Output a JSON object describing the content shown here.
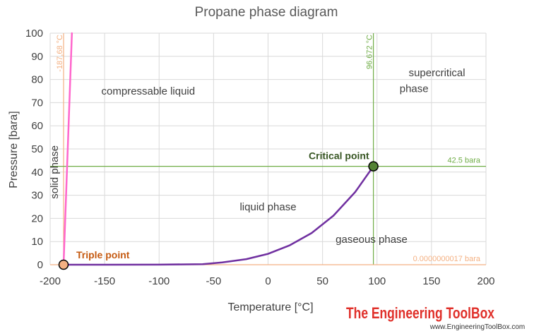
{
  "chart_data": {
    "type": "line",
    "title": "Propane phase diagram",
    "xlabel": "Temperature [°C]",
    "ylabel": "Pressure [bara]",
    "xlim": [
      -200,
      200
    ],
    "ylim": [
      0,
      100
    ],
    "x_ticks": [
      -200,
      -150,
      -100,
      -50,
      0,
      50,
      100,
      150,
      200
    ],
    "y_ticks": [
      0,
      10,
      20,
      30,
      40,
      50,
      60,
      70,
      80,
      90,
      100
    ],
    "grid": true,
    "series": [
      {
        "color": "#7030a0",
        "points": [
          [
            -187.68,
            0
          ],
          [
            -150,
            0
          ],
          [
            -100,
            0.02
          ],
          [
            -60,
            0.25
          ],
          [
            -42,
            1
          ],
          [
            -20,
            2.4
          ],
          [
            0,
            4.7
          ],
          [
            20,
            8.4
          ],
          [
            40,
            13.7
          ],
          [
            60,
            21.2
          ],
          [
            80,
            31.4
          ],
          [
            96.672,
            42.5
          ]
        ]
      },
      {
        "color": "#ff66cc",
        "points": [
          [
            -187.68,
            0
          ],
          [
            -180,
            100
          ]
        ]
      }
    ],
    "reference_lines": [
      {
        "axis": "x",
        "value": -187.68,
        "label": "-187,68 °C",
        "color": "#f4b183"
      },
      {
        "axis": "x",
        "value": 96.672,
        "label": "96.672 °C",
        "color": "#70ad47"
      },
      {
        "axis": "y",
        "value": 42.5,
        "label": "42.5 bara",
        "color": "#70ad47"
      },
      {
        "axis": "y",
        "value": 1.7e-09,
        "label": "0.0000000017 bara",
        "color": "#f4b183"
      }
    ],
    "points": [
      {
        "name": "Triple point",
        "x": -187.68,
        "y": 0,
        "fill": "#f4b183",
        "label_color": "#c55a11"
      },
      {
        "name": "Critical point",
        "x": 96.672,
        "y": 42.5,
        "fill": "#548235",
        "label_color": "#375623"
      }
    ],
    "regions": [
      {
        "text": "compressable liquid",
        "x": -110,
        "y": 75
      },
      {
        "text": "liquid phase",
        "x": 0,
        "y": 25
      },
      {
        "text": "gaseous phase",
        "x": 95,
        "y": 11
      },
      {
        "text": "supercritical",
        "x": 155,
        "y": 83
      },
      {
        "text": "phase",
        "x": 134,
        "y": 76
      },
      {
        "text": "solid phase",
        "x": -193,
        "y": 40,
        "rotated": true
      }
    ]
  },
  "branding": {
    "logo": "The Engineering ToolBox",
    "url": "www.EngineeringToolBox.com"
  }
}
